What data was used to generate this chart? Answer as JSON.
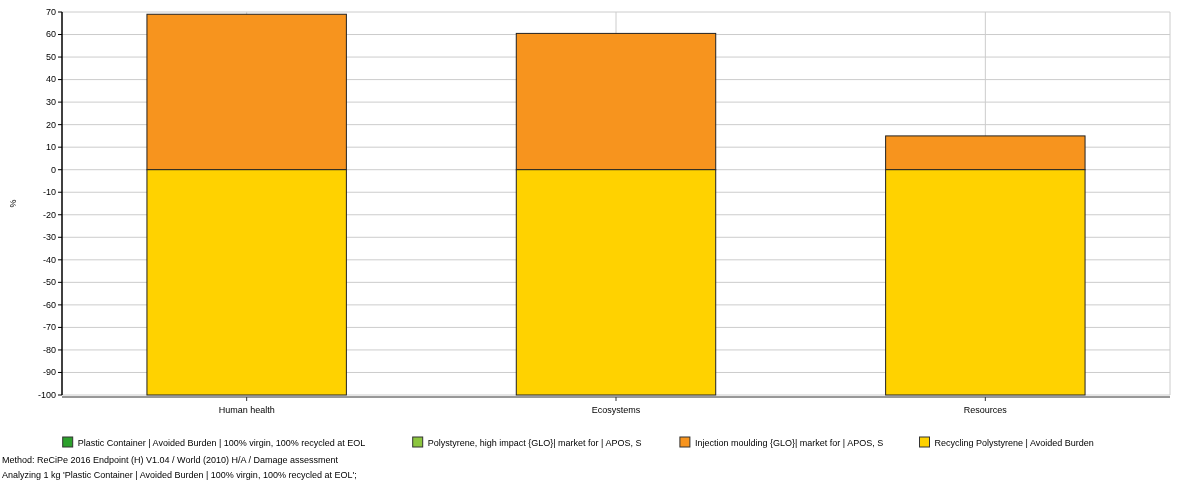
{
  "chart_data": {
    "type": "bar",
    "stacked": true,
    "ylabel": "%",
    "categories": [
      "Human health",
      "Ecosystems",
      "Resources"
    ],
    "series": [
      {
        "name": "Plastic Container | Avoided Burden | 100% virgin, 100% recycled at EOL",
        "color": "#2ca02c",
        "values": [
          0,
          0,
          0
        ]
      },
      {
        "name": "Polystyrene, high impact {GLO}| market for | APOS, S",
        "color": "#8cc63f",
        "values": [
          0,
          0,
          0
        ]
      },
      {
        "name": "Injection moulding {GLO}| market for | APOS, S",
        "color": "#f7941e",
        "values": [
          69,
          60.5,
          15
        ]
      },
      {
        "name": "Recycling Polystyrene | Avoided Burden",
        "color": "#ffd200",
        "values": [
          -100,
          -100,
          -100
        ]
      }
    ],
    "ylim": [
      -100,
      70
    ],
    "yticks": [
      -100,
      -90,
      -80,
      -70,
      -60,
      -50,
      -40,
      -30,
      -20,
      -10,
      0,
      10,
      20,
      30,
      40,
      50,
      60,
      70
    ],
    "grid": true,
    "legend": "bottom",
    "annotations": [
      "Method: ReCiPe 2016 Endpoint (H) V1.04 / World (2010) H/A / Damage assessment",
      "Analyzing 1 kg 'Plastic Container | Avoided Burden | 100% virgin, 100% recycled at EOL';"
    ]
  }
}
